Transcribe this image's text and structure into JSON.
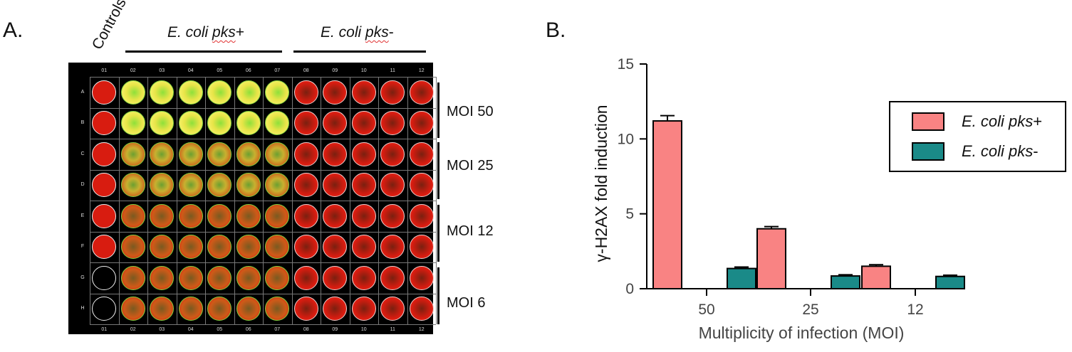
{
  "panel_a": {
    "label": "A.",
    "controls_label": "Controls",
    "group_pos": {
      "prefix": "E. coli ",
      "gene": "pks",
      "suffix": "+"
    },
    "group_neg": {
      "prefix": "E. coli ",
      "gene": "pks",
      "suffix": "-"
    },
    "column_labels": [
      "01",
      "02",
      "03",
      "04",
      "05",
      "06",
      "07",
      "08",
      "09",
      "10",
      "11",
      "12"
    ],
    "row_labels": [
      "A",
      "B",
      "C",
      "D",
      "E",
      "F",
      "G",
      "H"
    ],
    "moi_labels": [
      "MOI 50",
      "MOI 25",
      "MOI 12",
      "MOI 6"
    ],
    "colors": {
      "red_well": "#d81c10",
      "yellow_well": "#e8e448",
      "orange_well": "#cf5a18",
      "plate_bg": "#000000"
    }
  },
  "panel_b": {
    "label": "B.",
    "legend": {
      "pos": {
        "prefix": "E. coli ",
        "gene": "pks",
        "suffix": "+"
      },
      "neg": {
        "prefix": "E. coli ",
        "gene": "pks",
        "suffix": "-"
      }
    },
    "chart_data": {
      "type": "bar",
      "categories": [
        "50",
        "25",
        "12"
      ],
      "series": [
        {
          "name": "E. coli pks+",
          "values": [
            11.2,
            4.0,
            1.5
          ],
          "errors": [
            0.35,
            0.15,
            0.1
          ],
          "color": "#f98383"
        },
        {
          "name": "E. coli pks-",
          "values": [
            1.35,
            0.85,
            0.82
          ],
          "errors": [
            0.1,
            0.08,
            0.08
          ],
          "color": "#1a8a88"
        }
      ],
      "xlabel": "Multiplicity of infection  (MOI)",
      "ylabel": "γ-H2AX fold induction",
      "ylim": [
        0,
        15
      ],
      "yticks": [
        "0",
        "5",
        "10",
        "15"
      ],
      "grid": false,
      "legend_position": "top-right"
    }
  }
}
